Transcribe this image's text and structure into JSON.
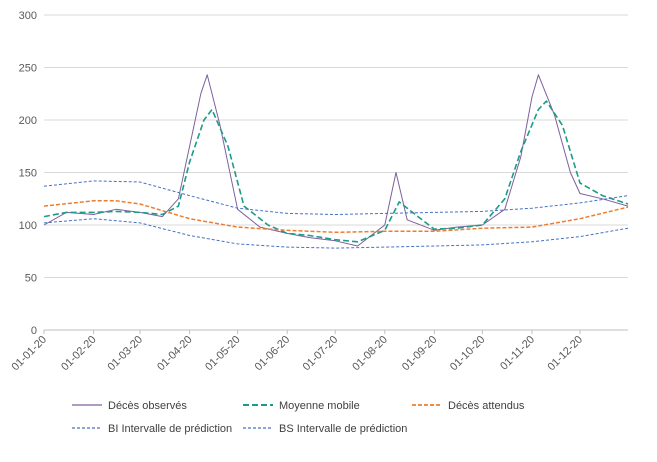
{
  "chart_data": {
    "type": "line",
    "ylim": [
      0,
      300
    ],
    "yticks": [
      0,
      50,
      100,
      150,
      200,
      250,
      300
    ],
    "x_tick_labels": [
      "01-01-20",
      "01-02-20",
      "01-03-20",
      "01-04-20",
      "01-05-20",
      "01-06-20",
      "01-07-20",
      "01-08-20",
      "01-09-20",
      "01-10-20",
      "01-11-20",
      "01-12-20"
    ],
    "x_tick_days": [
      0,
      31,
      60,
      91,
      121,
      152,
      182,
      213,
      244,
      274,
      305,
      335
    ],
    "x_range_days": [
      0,
      365
    ],
    "grid": "horizontal",
    "legend_position": "bottom",
    "colors": {
      "observed": "#7F5F9F",
      "moving_avg": "#1B9C85",
      "expected": "#ED7D31",
      "bounds": "#4472C4",
      "grid": "#D9D9D9",
      "axis": "#BFBFBF"
    },
    "series": [
      {
        "name": "Décès observés",
        "key": "observed",
        "style": "solid",
        "x": [
          "01-01-20",
          "15-01-20",
          "01-02-20",
          "15-02-20",
          "01-03-20",
          "15-03-20",
          "25-03-20",
          "01-04-20",
          "08-04-20",
          "12-04-20",
          "20-04-20",
          "01-05-20",
          "15-05-20",
          "01-06-20",
          "15-06-20",
          "01-07-20",
          "15-07-20",
          "01-08-20",
          "08-08-20",
          "15-08-20",
          "01-09-20",
          "15-09-20",
          "01-10-20",
          "15-10-20",
          "25-10-20",
          "01-11-20",
          "05-11-20",
          "15-11-20",
          "25-11-20",
          "01-12-20",
          "15-12-20",
          "31-12-20"
        ],
        "values": [
          100,
          112,
          110,
          115,
          112,
          108,
          125,
          175,
          225,
          243,
          195,
          115,
          98,
          92,
          88,
          85,
          80,
          100,
          150,
          105,
          95,
          98,
          100,
          115,
          165,
          222,
          243,
          205,
          150,
          130,
          125,
          118
        ]
      },
      {
        "name": "Moyenne mobile",
        "key": "moving_avg",
        "style": "dashed",
        "x": [
          "01-01-20",
          "15-01-20",
          "01-02-20",
          "15-02-20",
          "01-03-20",
          "15-03-20",
          "25-03-20",
          "01-04-20",
          "10-04-20",
          "15-04-20",
          "25-04-20",
          "05-05-20",
          "20-05-20",
          "01-06-20",
          "15-06-20",
          "01-07-20",
          "15-07-20",
          "01-08-20",
          "10-08-20",
          "20-08-20",
          "01-09-20",
          "15-09-20",
          "01-10-20",
          "15-10-20",
          "25-10-20",
          "05-11-20",
          "10-11-20",
          "20-11-20",
          "01-12-20",
          "15-12-20",
          "31-12-20"
        ],
        "values": [
          108,
          112,
          112,
          113,
          112,
          110,
          118,
          160,
          200,
          210,
          175,
          118,
          100,
          92,
          90,
          86,
          84,
          95,
          122,
          110,
          96,
          97,
          100,
          125,
          170,
          210,
          218,
          195,
          140,
          128,
          120
        ]
      },
      {
        "name": "Décès attendus",
        "key": "expected",
        "style": "dashed",
        "x": [
          "01-01-20",
          "01-02-20",
          "15-02-20",
          "01-03-20",
          "01-04-20",
          "01-05-20",
          "01-06-20",
          "01-07-20",
          "01-08-20",
          "01-09-20",
          "01-10-20",
          "01-11-20",
          "01-12-20",
          "31-12-20"
        ],
        "values": [
          118,
          123,
          123,
          120,
          106,
          98,
          95,
          93,
          94,
          94,
          97,
          98,
          106,
          117
        ]
      },
      {
        "name": "BI Intervalle de prédiction",
        "key": "lower",
        "style": "dashed",
        "x": [
          "01-01-20",
          "01-02-20",
          "01-03-20",
          "01-04-20",
          "01-05-20",
          "01-06-20",
          "01-07-20",
          "01-08-20",
          "01-09-20",
          "01-10-20",
          "01-11-20",
          "01-12-20",
          "31-12-20"
        ],
        "values": [
          102,
          106,
          102,
          90,
          82,
          79,
          78,
          79,
          80,
          81,
          84,
          89,
          97
        ]
      },
      {
        "name": "BS Intervalle de prédiction",
        "key": "upper",
        "style": "dashed",
        "x": [
          "01-01-20",
          "01-02-20",
          "01-03-20",
          "01-04-20",
          "01-05-20",
          "01-06-20",
          "01-07-20",
          "01-08-20",
          "01-09-20",
          "01-10-20",
          "01-11-20",
          "01-12-20",
          "31-12-20"
        ],
        "values": [
          137,
          142,
          141,
          128,
          116,
          111,
          110,
          111,
          112,
          113,
          116,
          121,
          128
        ]
      }
    ]
  }
}
